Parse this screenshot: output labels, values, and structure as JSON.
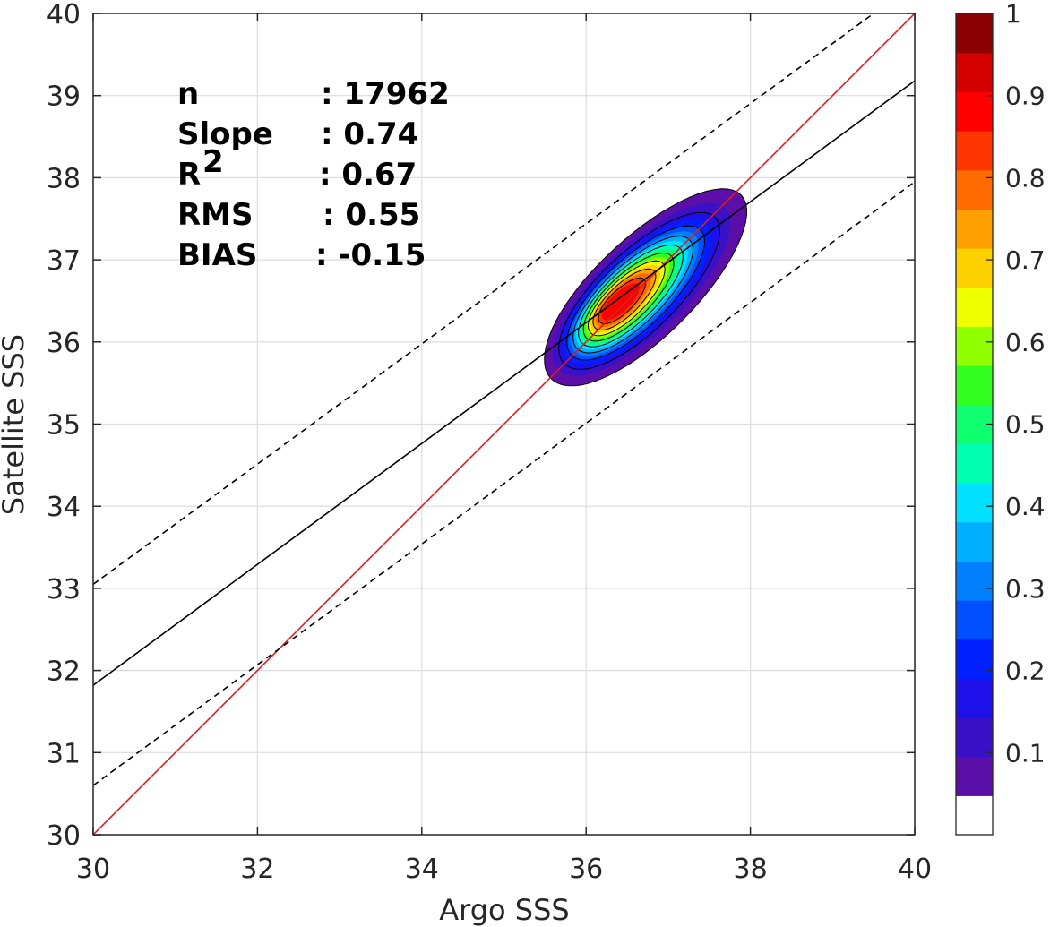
{
  "chart_data": {
    "type": "contour-scatter",
    "xlabel": "Argo SSS",
    "ylabel": "Satellite SSS",
    "xlim": [
      30,
      40
    ],
    "ylim": [
      30,
      40
    ],
    "xticks": [
      "30",
      "32",
      "34",
      "36",
      "38",
      "40"
    ],
    "yticks": [
      "30",
      "31",
      "32",
      "33",
      "34",
      "35",
      "36",
      "37",
      "38",
      "39",
      "40"
    ],
    "grid": true,
    "stats": [
      {
        "label": "n",
        "value": ": 17962"
      },
      {
        "label": "Slope",
        "value": ": 0.74"
      },
      {
        "label": "R",
        "sup": "2",
        "value": ": 0.67"
      },
      {
        "label": "RMS",
        "value": ": 0.55"
      },
      {
        "label": "BIAS",
        "value": ": -0.15"
      }
    ],
    "density": {
      "center": {
        "x": 36.35,
        "y": 36.45
      },
      "levels": [
        0.1,
        0.2,
        0.3,
        0.4,
        0.5,
        0.6,
        0.7,
        0.8,
        0.9
      ],
      "max": 1
    },
    "lines": [
      {
        "name": "one-to-one",
        "color": "#d62020",
        "style": "solid",
        "points": [
          [
            30,
            30
          ],
          [
            40,
            40
          ]
        ]
      },
      {
        "name": "regression",
        "color": "#000000",
        "style": "solid",
        "points": [
          [
            30,
            31.82
          ],
          [
            40,
            39.18
          ]
        ]
      },
      {
        "name": "upper-bound",
        "color": "#000000",
        "style": "dashed",
        "points": [
          [
            30,
            33.05
          ],
          [
            39.5,
            40
          ]
        ]
      },
      {
        "name": "lower-bound",
        "color": "#000000",
        "style": "dashed",
        "points": [
          [
            30,
            30.6
          ],
          [
            40,
            37.95
          ]
        ]
      }
    ],
    "colorbar": {
      "ticks": [
        "0.1",
        "0.2",
        "0.3",
        "0.4",
        "0.5",
        "0.6",
        "0.7",
        "0.8",
        "0.9",
        "1"
      ],
      "tick_values": [
        0.1,
        0.2,
        0.3,
        0.4,
        0.5,
        0.6,
        0.7,
        0.8,
        0.9,
        1.0
      ],
      "colors": [
        "#ffffff",
        "#5b0fa8",
        "#3a10c8",
        "#1d10e8",
        "#0020ff",
        "#0050ff",
        "#0080ff",
        "#00b0ff",
        "#00e0ff",
        "#00ffb0",
        "#10ff70",
        "#30ff20",
        "#90ff00",
        "#f0ff00",
        "#ffd000",
        "#ffa000",
        "#ff6a00",
        "#ff3500",
        "#ff0000",
        "#d40000",
        "#8b0000"
      ]
    }
  }
}
